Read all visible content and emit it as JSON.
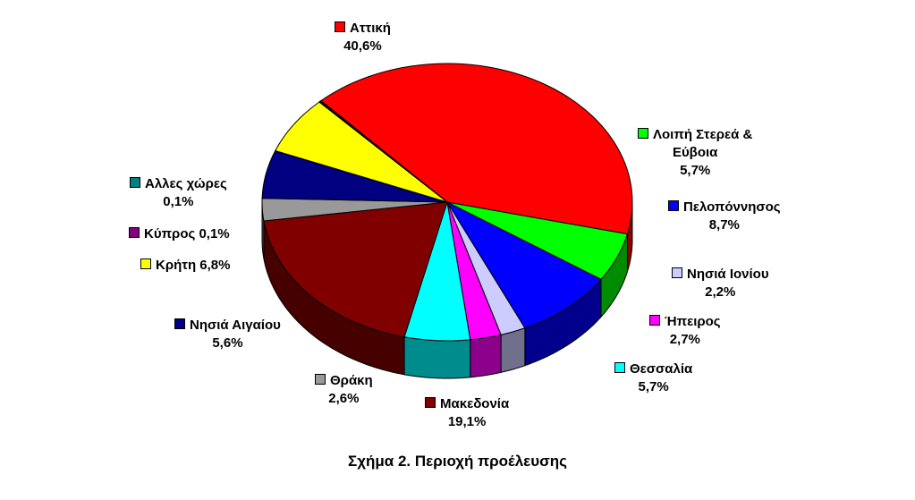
{
  "caption": "Σχήμα 2. Περιοχή προέλευσης",
  "chart_data": {
    "type": "pie",
    "title": "Σχήμα 2. Περιοχή προέλευσης",
    "slices": [
      {
        "label": "Αττική",
        "value": 40.6,
        "pct": "40,6%",
        "color": "#ff0000"
      },
      {
        "label": "Λοιπή Στερεά & Εύβοια",
        "value": 5.7,
        "pct": "5,7%",
        "color": "#00ff00"
      },
      {
        "label": "Πελοπόννησος",
        "value": 8.7,
        "pct": "8,7%",
        "color": "#0000ff"
      },
      {
        "label": "Νησιά Ιονίου",
        "value": 2.2,
        "pct": "2,2%",
        "color": "#ccccff"
      },
      {
        "label": "Ήπειρος",
        "value": 2.7,
        "pct": "2,7%",
        "color": "#ff00ff"
      },
      {
        "label": "Θεσσαλία",
        "value": 5.7,
        "pct": "5,7%",
        "color": "#00ffff"
      },
      {
        "label": "Μακεδονία",
        "value": 19.1,
        "pct": "19,1%",
        "color": "#800000"
      },
      {
        "label": "Θράκη",
        "value": 2.6,
        "pct": "2,6%",
        "color": "#999999"
      },
      {
        "label": "Νησιά Αιγαίου",
        "value": 5.6,
        "pct": "5,6%",
        "color": "#000080"
      },
      {
        "label": "Κρήτη",
        "value": 6.8,
        "pct": "6,8%",
        "color": "#ffff00"
      },
      {
        "label": "Κύπρος",
        "value": 0.1,
        "pct": "0,1%",
        "color": "#800080"
      },
      {
        "label": "Αλλες χώρες",
        "value": 0.1,
        "pct": "0,1%",
        "color": "#008080"
      }
    ]
  }
}
